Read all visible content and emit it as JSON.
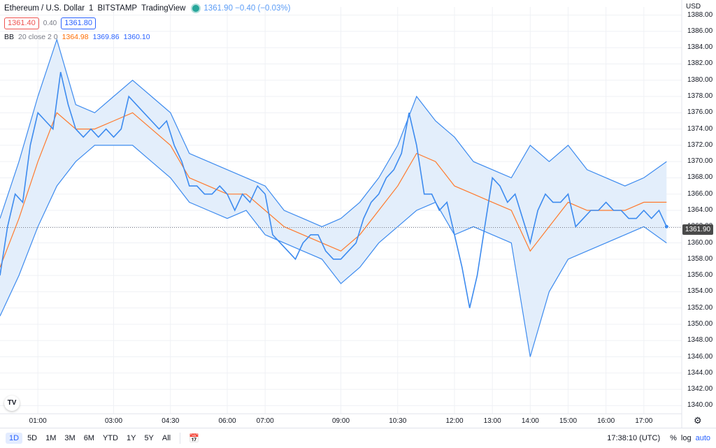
{
  "header": {
    "symbol": "Ethereum / U.S. Dollar",
    "interval": "1",
    "exchange": "BITSTAMP",
    "source": "TradingView",
    "ohlc_text": "1361.90 −0.40 (−0.03%)",
    "bid": "1361.40",
    "spread": "0.40",
    "ask": "1361.80"
  },
  "indicator": {
    "name": "BB",
    "params": "20 close 2 0",
    "basis": "1364.98",
    "upper": "1369.86",
    "lower": "1360.10"
  },
  "price_axis": {
    "currency": "USD",
    "current_price": "1361.90"
  },
  "toolbar": {
    "ranges": [
      "1D",
      "5D",
      "1M",
      "3M",
      "6M",
      "YTD",
      "1Y",
      "5Y",
      "All"
    ],
    "active_range": "1D",
    "clock": "17:38:10 (UTC)",
    "percent": "%",
    "log": "log",
    "auto": "auto"
  },
  "colors": {
    "price_line": "#3d8bef",
    "band_fill": "#e3eefb",
    "basis_line": "#ff7a2e",
    "grid": "#eff1f5"
  },
  "chart_data": {
    "type": "line",
    "title": "Ethereum / U.S. Dollar",
    "ylabel": "",
    "xlabel": "",
    "ylim": [
      1339,
      1389
    ],
    "yticks": [
      1340,
      1342,
      1344,
      1346,
      1348,
      1350,
      1352,
      1354,
      1356,
      1358,
      1360,
      1362,
      1364,
      1366,
      1368,
      1370,
      1372,
      1374,
      1376,
      1378,
      1380,
      1382,
      1384,
      1386,
      1388
    ],
    "xticks": [
      {
        "label": "01:00",
        "t": 1.0
      },
      {
        "label": "03:00",
        "t": 3.0
      },
      {
        "label": "04:30",
        "t": 4.5
      },
      {
        "label": "06:00",
        "t": 6.0
      },
      {
        "label": "07:00",
        "t": 7.0
      },
      {
        "label": "09:00",
        "t": 9.0
      },
      {
        "label": "10:30",
        "t": 10.5
      },
      {
        "label": "12:00",
        "t": 12.0
      },
      {
        "label": "13:00",
        "t": 13.0
      },
      {
        "label": "14:00",
        "t": 14.0
      },
      {
        "label": "15:00",
        "t": 15.0
      },
      {
        "label": "16:00",
        "t": 16.0
      },
      {
        "label": "17:00",
        "t": 17.0
      }
    ],
    "xlim": [
      0.0,
      18.0
    ],
    "series": [
      {
        "name": "Ethereum / U.S. Dollar",
        "x": [
          0.0,
          0.2,
          0.4,
          0.6,
          0.8,
          1.0,
          1.2,
          1.4,
          1.6,
          1.8,
          2.0,
          2.2,
          2.4,
          2.6,
          2.8,
          3.0,
          3.2,
          3.4,
          3.6,
          3.8,
          4.0,
          4.2,
          4.4,
          4.6,
          4.8,
          5.0,
          5.2,
          5.4,
          5.6,
          5.8,
          6.0,
          6.2,
          6.4,
          6.6,
          6.8,
          7.0,
          7.2,
          7.4,
          7.6,
          7.8,
          8.0,
          8.2,
          8.4,
          8.6,
          8.8,
          9.0,
          9.2,
          9.4,
          9.6,
          9.8,
          10.0,
          10.2,
          10.4,
          10.6,
          10.8,
          11.0,
          11.2,
          11.4,
          11.6,
          11.8,
          12.0,
          12.2,
          12.4,
          12.6,
          12.8,
          13.0,
          13.2,
          13.4,
          13.6,
          13.8,
          14.0,
          14.2,
          14.4,
          14.6,
          14.8,
          15.0,
          15.2,
          15.4,
          15.6,
          15.8,
          16.0,
          16.2,
          16.4,
          16.6,
          16.8,
          17.0,
          17.2,
          17.4,
          17.6
        ],
        "values": [
          1356,
          1362,
          1366,
          1365,
          1372,
          1376,
          1375,
          1374,
          1381,
          1377,
          1374,
          1373,
          1374,
          1373,
          1374,
          1373,
          1374,
          1378,
          1377,
          1376,
          1375,
          1374,
          1375,
          1372,
          1370,
          1367,
          1367,
          1366,
          1366,
          1367,
          1366,
          1364,
          1366,
          1365,
          1367,
          1366,
          1361,
          1360,
          1359,
          1358,
          1360,
          1361,
          1361,
          1359,
          1358,
          1358,
          1359,
          1360,
          1363,
          1365,
          1366,
          1368,
          1369,
          1371,
          1376,
          1372,
          1366,
          1366,
          1364,
          1365,
          1361,
          1357,
          1352,
          1356,
          1362,
          1368,
          1367,
          1365,
          1366,
          1363,
          1360,
          1364,
          1366,
          1365,
          1365,
          1366,
          1362,
          1363,
          1364,
          1364,
          1365,
          1364,
          1364,
          1363,
          1363,
          1364,
          1363,
          1364,
          1362
        ]
      },
      {
        "name": "BB basis",
        "x": [
          0.0,
          0.5,
          1.0,
          1.5,
          2.0,
          2.5,
          3.0,
          3.5,
          4.0,
          4.5,
          5.0,
          5.5,
          6.0,
          6.5,
          7.0,
          7.5,
          8.0,
          8.5,
          9.0,
          9.5,
          10.0,
          10.5,
          11.0,
          11.5,
          12.0,
          12.5,
          13.0,
          13.5,
          14.0,
          14.5,
          15.0,
          15.5,
          16.0,
          16.5,
          17.0,
          17.6
        ],
        "values": [
          1357,
          1363,
          1370,
          1376,
          1374,
          1374,
          1375,
          1376,
          1374,
          1372,
          1368,
          1367,
          1366,
          1366,
          1364,
          1362,
          1361,
          1360,
          1359,
          1361,
          1364,
          1367,
          1371,
          1370,
          1367,
          1366,
          1365,
          1364,
          1359,
          1362,
          1365,
          1364,
          1364,
          1364,
          1365,
          1365
        ]
      },
      {
        "name": "BB upper",
        "x": [
          0.0,
          0.5,
          1.0,
          1.5,
          2.0,
          2.5,
          3.0,
          3.5,
          4.0,
          4.5,
          5.0,
          5.5,
          6.0,
          6.5,
          7.0,
          7.5,
          8.0,
          8.5,
          9.0,
          9.5,
          10.0,
          10.5,
          11.0,
          11.5,
          12.0,
          12.5,
          13.0,
          13.5,
          14.0,
          14.5,
          15.0,
          15.5,
          16.0,
          16.5,
          17.0,
          17.6
        ],
        "values": [
          1363,
          1370,
          1378,
          1385,
          1377,
          1376,
          1378,
          1380,
          1378,
          1376,
          1371,
          1370,
          1369,
          1368,
          1367,
          1364,
          1363,
          1362,
          1363,
          1365,
          1368,
          1372,
          1378,
          1375,
          1373,
          1370,
          1369,
          1368,
          1372,
          1370,
          1372,
          1369,
          1368,
          1367,
          1368,
          1370
        ]
      },
      {
        "name": "BB lower",
        "x": [
          0.0,
          0.5,
          1.0,
          1.5,
          2.0,
          2.5,
          3.0,
          3.5,
          4.0,
          4.5,
          5.0,
          5.5,
          6.0,
          6.5,
          7.0,
          7.5,
          8.0,
          8.5,
          9.0,
          9.5,
          10.0,
          10.5,
          11.0,
          11.5,
          12.0,
          12.5,
          13.0,
          13.5,
          14.0,
          14.5,
          15.0,
          15.5,
          16.0,
          16.5,
          17.0,
          17.6
        ],
        "values": [
          1351,
          1356,
          1362,
          1367,
          1370,
          1372,
          1372,
          1372,
          1370,
          1368,
          1365,
          1364,
          1363,
          1364,
          1361,
          1360,
          1359,
          1358,
          1355,
          1357,
          1360,
          1362,
          1364,
          1365,
          1361,
          1362,
          1361,
          1360,
          1346,
          1354,
          1358,
          1359,
          1360,
          1361,
          1362,
          1360
        ]
      }
    ],
    "grid": true,
    "legend": "top-left"
  }
}
